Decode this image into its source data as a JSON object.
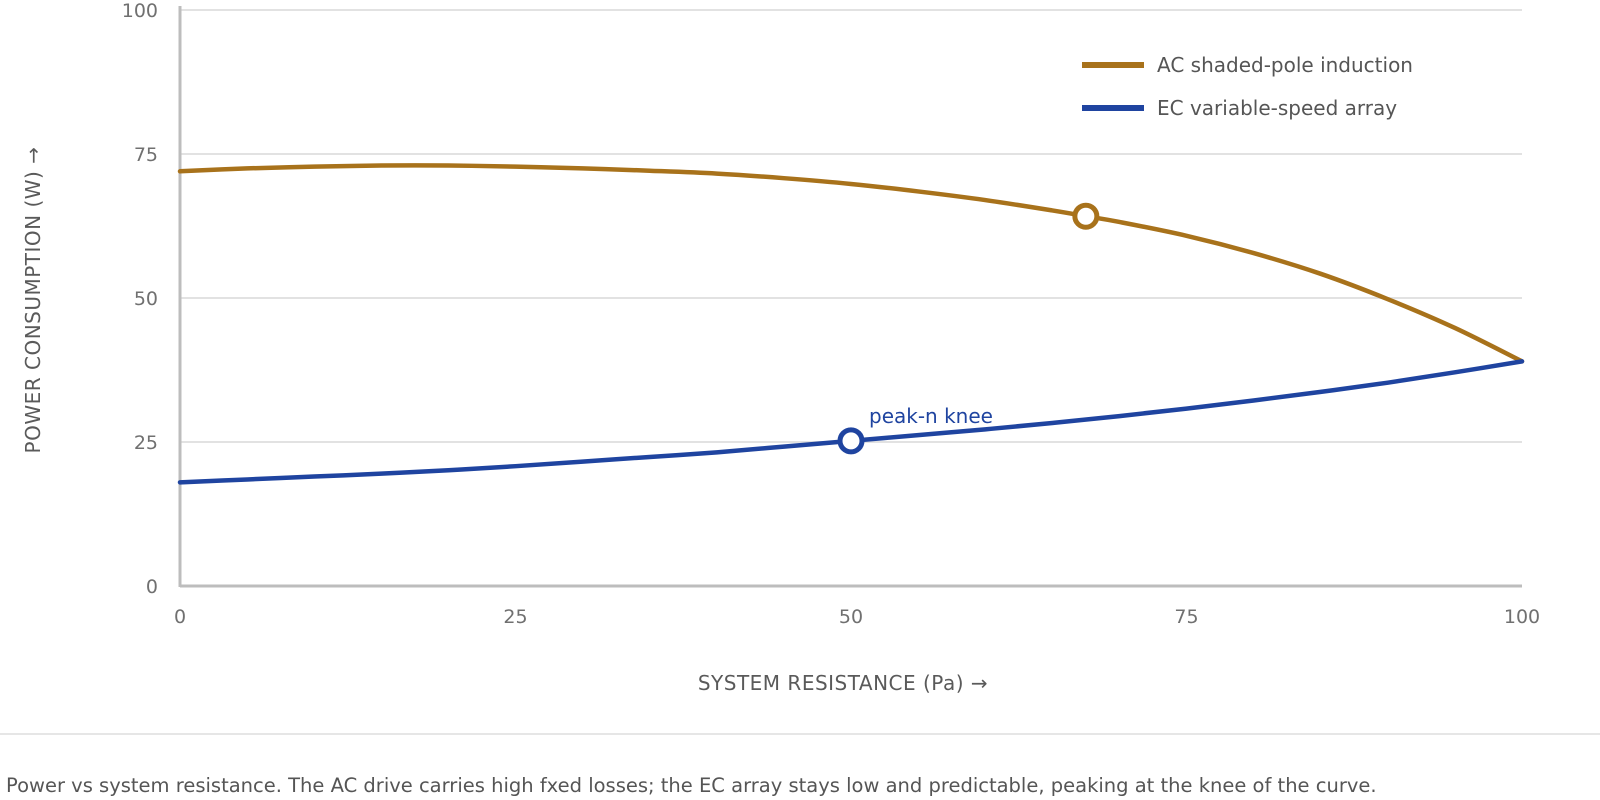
{
  "chart_data": {
    "type": "line",
    "xlabel": "SYSTEM RESISTANCE (Pa) →",
    "ylabel": "POWER CONSUMPTION (W) →",
    "xlim": [
      0,
      100
    ],
    "ylim": [
      0,
      100
    ],
    "xticks": [
      0,
      25,
      50,
      75,
      100
    ],
    "yticks": [
      0,
      25,
      50,
      75,
      100
    ],
    "grid": "horizontal",
    "legend": "top-right",
    "series": [
      {
        "name": "AC shaded-pole induction",
        "color": "#A8721B",
        "x": [
          0,
          5,
          10,
          15,
          20,
          25,
          30,
          35,
          40,
          45,
          50,
          55,
          60,
          65,
          67.5,
          70,
          75,
          80,
          85,
          90,
          95,
          100
        ],
        "y": [
          72,
          72.5,
          72.8,
          73,
          73,
          72.8,
          72.5,
          72.1,
          71.6,
          70.8,
          69.8,
          68.5,
          67,
          65.2,
          64.2,
          63.2,
          60.8,
          57.8,
          54.2,
          49.8,
          44.8,
          39
        ],
        "marker": {
          "x": 67.5,
          "y": 64.2
        }
      },
      {
        "name": "EC variable-speed array",
        "color": "#1F44A0",
        "x": [
          0,
          5,
          10,
          15,
          20,
          25,
          30,
          35,
          40,
          45,
          50,
          55,
          60,
          65,
          70,
          75,
          80,
          85,
          90,
          95,
          100
        ],
        "y": [
          18,
          18.5,
          19,
          19.5,
          20.1,
          20.8,
          21.6,
          22.4,
          23.2,
          24.2,
          25.2,
          26.2,
          27.2,
          28.3,
          29.5,
          30.8,
          32.2,
          33.7,
          35.3,
          37.1,
          39
        ],
        "marker": {
          "x": 50,
          "y": 25.2,
          "label": "peak-n knee"
        }
      }
    ]
  },
  "caption": "Power vs system resistance. The AC drive carries high fxed losses; the EC array stays low and predictable, peaking at the knee of the curve."
}
